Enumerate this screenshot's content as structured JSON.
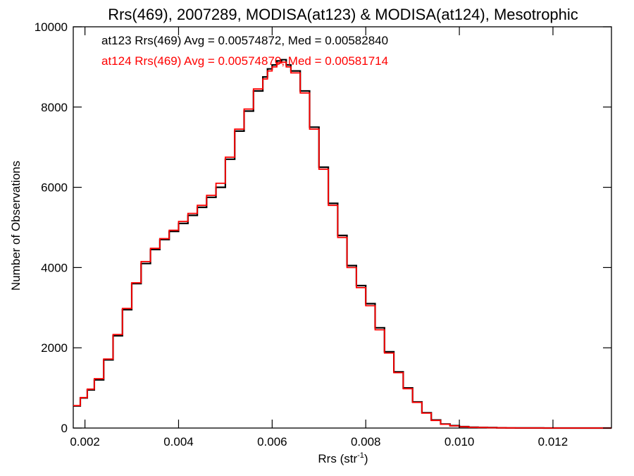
{
  "chart_data": {
    "type": "line",
    "step": true,
    "title": "Rrs(469), 2007289, MODISA(at123) & MODISA(at124), Mesotrophic",
    "xlabel_main": "Rrs (str",
    "xlabel_sup": "-1",
    "xlabel_end": ")",
    "ylabel": "Number of Observations",
    "xlim": [
      0.00175,
      0.01325
    ],
    "ylim": [
      0,
      10000
    ],
    "x_ticks": [
      0.002,
      0.004,
      0.006,
      0.008,
      0.01,
      0.012
    ],
    "x_tick_labels": [
      "0.002",
      "0.004",
      "0.006",
      "0.008",
      "0.010",
      "0.012"
    ],
    "y_ticks": [
      0,
      2000,
      4000,
      6000,
      8000,
      10000
    ],
    "y_tick_labels": [
      "0",
      "2000",
      "4000",
      "6000",
      "8000",
      "10000"
    ],
    "annotations": [
      {
        "text": "at123 Rrs(469) Avg = 0.00574872, Med = 0.00582840",
        "color": "#000000"
      },
      {
        "text": "at124 Rrs(469) Avg = 0.00574870, Med = 0.00581714",
        "color": "#ff0000"
      }
    ],
    "series": [
      {
        "color": "#000000",
        "x": [
          0.00175,
          0.0019,
          0.00205,
          0.0022,
          0.0024,
          0.0026,
          0.0028,
          0.003,
          0.0032,
          0.0034,
          0.0036,
          0.0038,
          0.004,
          0.0042,
          0.0044,
          0.0046,
          0.0048,
          0.005,
          0.0052,
          0.0054,
          0.0056,
          0.0058,
          0.0059,
          0.006,
          0.0061,
          0.0062,
          0.0063,
          0.0064,
          0.0066,
          0.0068,
          0.007,
          0.0072,
          0.0074,
          0.0076,
          0.0078,
          0.008,
          0.0082,
          0.0084,
          0.0086,
          0.0088,
          0.009,
          0.0092,
          0.0094,
          0.0096,
          0.0098,
          0.01,
          0.0102,
          0.0104,
          0.0106,
          0.0108,
          0.011,
          0.0112,
          0.0114,
          0.0116,
          0.0118,
          0.012,
          0.0122,
          0.0124,
          0.0126,
          0.0128,
          0.013,
          0.01325
        ],
        "y": [
          550,
          750,
          950,
          1200,
          1700,
          2300,
          2950,
          3600,
          4100,
          4450,
          4700,
          4900,
          5100,
          5300,
          5500,
          5750,
          6000,
          6700,
          7400,
          7900,
          8400,
          8750,
          8950,
          9050,
          9150,
          9180,
          9050,
          8900,
          8400,
          7500,
          6500,
          5600,
          4800,
          4050,
          3550,
          3100,
          2500,
          1900,
          1400,
          1000,
          650,
          380,
          200,
          100,
          60,
          35,
          20,
          15,
          10,
          5,
          3,
          2,
          1,
          1,
          0,
          0,
          0,
          0,
          0,
          0,
          0,
          0
        ]
      },
      {
        "color": "#ff0000",
        "x": [
          0.00175,
          0.0019,
          0.00205,
          0.0022,
          0.0024,
          0.0026,
          0.0028,
          0.003,
          0.0032,
          0.0034,
          0.0036,
          0.0038,
          0.004,
          0.0042,
          0.0044,
          0.0046,
          0.0048,
          0.005,
          0.0052,
          0.0054,
          0.0056,
          0.0058,
          0.0059,
          0.006,
          0.0061,
          0.0062,
          0.0063,
          0.0064,
          0.0066,
          0.0068,
          0.007,
          0.0072,
          0.0074,
          0.0076,
          0.0078,
          0.008,
          0.0082,
          0.0084,
          0.0086,
          0.0088,
          0.009,
          0.0092,
          0.0094,
          0.0096,
          0.0098,
          0.01,
          0.0102,
          0.0104,
          0.0106,
          0.0108,
          0.011,
          0.0112,
          0.0114,
          0.0116,
          0.0118,
          0.012,
          0.0122,
          0.0124,
          0.0126,
          0.0128,
          0.013,
          0.01325
        ],
        "y": [
          560,
          760,
          970,
          1230,
          1720,
          2330,
          2980,
          3620,
          4150,
          4480,
          4720,
          4930,
          5150,
          5350,
          5550,
          5800,
          6100,
          6750,
          7450,
          7950,
          8450,
          8700,
          8900,
          9000,
          9100,
          9120,
          9000,
          8850,
          8350,
          7450,
          6450,
          5550,
          4750,
          4000,
          3500,
          3050,
          2450,
          1870,
          1380,
          980,
          640,
          370,
          190,
          95,
          55,
          32,
          18,
          14,
          9,
          5,
          3,
          2,
          1,
          1,
          0,
          0,
          0,
          0,
          0,
          0,
          0,
          0
        ]
      }
    ]
  }
}
